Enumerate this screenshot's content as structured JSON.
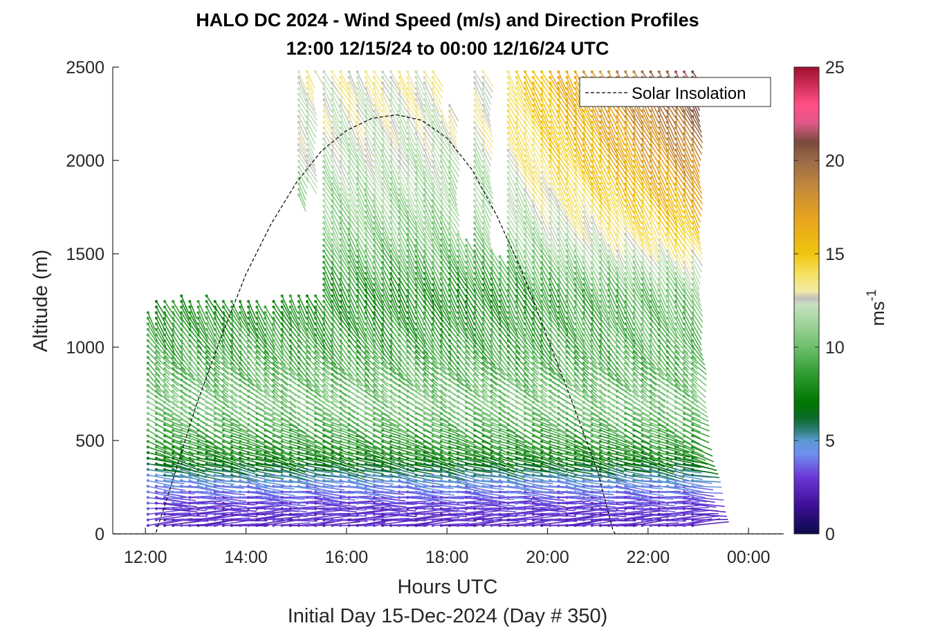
{
  "chart_data": {
    "type": "scatter",
    "title": "HALO DC 2024 - Wind Speed (m/s) and Direction Profiles",
    "subtitle": "12:00 12/15/24 to 00:00 12/16/24  UTC",
    "xlabel": "Hours UTC",
    "xlabel2": "Initial Day 15-Dec-2024 (Day # 350)",
    "ylabel": "Altitude (m)",
    "colorbar_label": "ms",
    "colorbar_label_exponent": "-1",
    "xlim": [
      11.35,
      24.7
    ],
    "ylim": [
      0,
      2500
    ],
    "clim": [
      0,
      25
    ],
    "x_ticks": [
      12,
      14,
      16,
      18,
      20,
      22,
      24
    ],
    "x_tick_labels": [
      "12:00",
      "14:00",
      "16:00",
      "18:00",
      "20:00",
      "22:00",
      "00:00"
    ],
    "y_ticks": [
      0,
      500,
      1000,
      1500,
      2000,
      2500
    ],
    "y_tick_labels": [
      "0",
      "500",
      "1000",
      "1500",
      "2000",
      "2500"
    ],
    "colorbar_ticks": [
      0,
      5,
      10,
      15,
      20,
      25
    ],
    "colorbar_tick_labels": [
      "0",
      "5",
      "10",
      "15",
      "20",
      "25"
    ],
    "legend": {
      "entries": [
        "Solar Insolation"
      ],
      "location": "top-right"
    },
    "solar_insolation": {
      "name": "Solar Insolation",
      "style": "dashed",
      "color": "#000000",
      "x": [
        11.35,
        12.1,
        12.2,
        12.5,
        13.0,
        13.5,
        14.0,
        14.5,
        15.0,
        15.5,
        16.0,
        16.5,
        17.0,
        17.5,
        18.0,
        18.5,
        19.0,
        19.5,
        20.0,
        20.5,
        21.0,
        21.3,
        21.35,
        24.7
      ],
      "y": [
        0,
        0,
        0,
        250,
        680,
        1050,
        1390,
        1660,
        1880,
        2050,
        2160,
        2225,
        2245,
        2215,
        2120,
        1950,
        1700,
        1400,
        1050,
        700,
        330,
        20,
        0,
        0
      ]
    },
    "profiles": {
      "x_start": 12.05,
      "x_step": 0.1667,
      "altitude_step": 30,
      "lowest_altitude": 45,
      "top_altitudes": [
        1210,
        1250,
        1260,
        1260,
        1290,
        1250,
        1250,
        1290,
        1260,
        1260,
        1260,
        1250,
        1250,
        1250,
        1220,
        1260,
        1310,
        1310,
        2500,
        2500,
        2500,
        2500,
        2500,
        2500,
        2500,
        2500,
        2500,
        2500,
        2500,
        2500,
        2500,
        2500,
        2500,
        2500,
        2500,
        2270,
        2300,
        1610,
        1600,
        2500,
        2500,
        1520,
        1500,
        2500,
        2500,
        2500,
        2500,
        2500,
        2500,
        2500,
        2500,
        2500,
        2500,
        2500,
        2500,
        2500,
        2500,
        2500,
        2500,
        2500,
        2500,
        2500,
        2500,
        2500,
        2500,
        2500
      ],
      "gaps": [
        [
          16,
          1300,
          1800
        ],
        [
          17,
          1300,
          1780
        ],
        [
          18,
          1300,
          1800
        ],
        [
          19,
          1300,
          1880
        ],
        [
          20,
          1300,
          2460
        ]
      ],
      "speed_profile_by_altitude": [
        {
          "altitude": 0,
          "speed": 2.5
        },
        {
          "altitude": 150,
          "speed": 3.0
        },
        {
          "altitude": 280,
          "speed": 4.5
        },
        {
          "altitude": 350,
          "speed": 6.0
        },
        {
          "altitude": 450,
          "speed": 8.0
        },
        {
          "altitude": 700,
          "speed": 10.5
        },
        {
          "altitude": 1000,
          "speed": 9.0
        },
        {
          "altitude": 1300,
          "speed": 8.0
        },
        {
          "altitude": 1600,
          "speed": 10.5
        },
        {
          "altitude": 2000,
          "speed": 12.0
        },
        {
          "altitude": 2500,
          "speed": 13.0
        }
      ],
      "late_speed_increase": {
        "start_hour": 18.6,
        "max_hour": 23.0,
        "max_speed_at_top": 21
      }
    },
    "colormap": [
      {
        "value": 0,
        "color": "#0b0a4a"
      },
      {
        "value": 1.5,
        "color": "#3c0f96"
      },
      {
        "value": 3,
        "color": "#6b35d6"
      },
      {
        "value": 4.3,
        "color": "#6f8ff0"
      },
      {
        "value": 5,
        "color": "#5a9ad0"
      },
      {
        "value": 5.6,
        "color": "#2b7e72"
      },
      {
        "value": 6.2,
        "color": "#0a6b2a"
      },
      {
        "value": 7,
        "color": "#007500"
      },
      {
        "value": 8.5,
        "color": "#2e9a2e"
      },
      {
        "value": 10,
        "color": "#6dbf6d"
      },
      {
        "value": 11.5,
        "color": "#a9d8a3"
      },
      {
        "value": 12.3,
        "color": "#c8e0c0"
      },
      {
        "value": 12.6,
        "color": "#c0c0c0"
      },
      {
        "value": 13,
        "color": "#f3eaa4"
      },
      {
        "value": 14,
        "color": "#f4df5a"
      },
      {
        "value": 15,
        "color": "#f1c40f"
      },
      {
        "value": 17,
        "color": "#e6a21f"
      },
      {
        "value": 18.5,
        "color": "#c48a3a"
      },
      {
        "value": 20,
        "color": "#9a6a48"
      },
      {
        "value": 21,
        "color": "#7a4a3c"
      },
      {
        "value": 22,
        "color": "#e0588a"
      },
      {
        "value": 23,
        "color": "#ff4f85"
      },
      {
        "value": 25,
        "color": "#a0102e"
      }
    ]
  }
}
